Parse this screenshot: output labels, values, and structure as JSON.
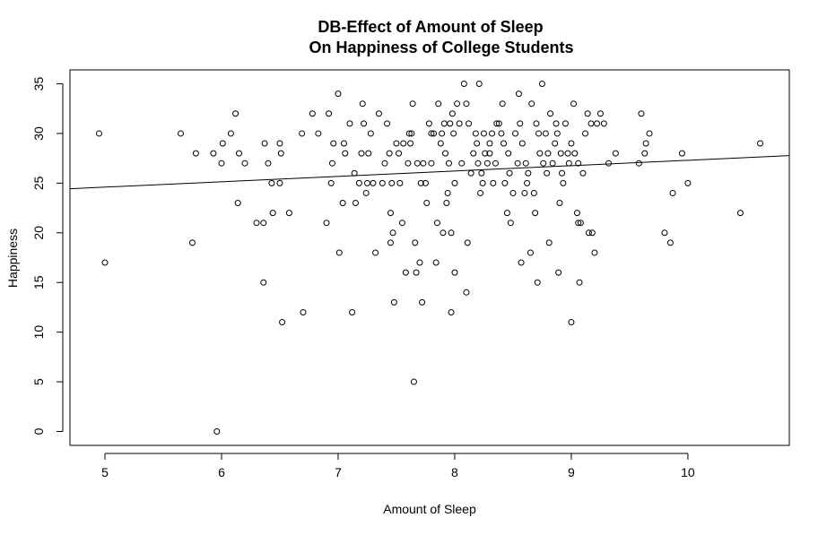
{
  "chart_data": {
    "type": "scatter",
    "title": [
      "DB-Effect of Amount of Sleep",
      "On Happiness of College Students"
    ],
    "xlabel": "Amount of Sleep",
    "ylabel": "Happiness",
    "xlim": [
      4.7,
      10.87
    ],
    "ylim": [
      -1.4,
      36.4
    ],
    "xticks": [
      5,
      6,
      7,
      8,
      9,
      10
    ],
    "yticks": [
      0,
      5,
      10,
      15,
      20,
      25,
      30,
      35
    ],
    "regression_line": {
      "intercept": 21.9,
      "slope": 0.54
    },
    "points": [
      [
        4.95,
        30
      ],
      [
        5.0,
        17
      ],
      [
        5.65,
        30
      ],
      [
        5.75,
        19
      ],
      [
        5.78,
        28
      ],
      [
        5.93,
        28
      ],
      [
        5.96,
        0
      ],
      [
        6.0,
        27
      ],
      [
        6.01,
        29
      ],
      [
        6.08,
        30
      ],
      [
        6.12,
        32
      ],
      [
        6.14,
        23
      ],
      [
        6.15,
        28
      ],
      [
        6.2,
        27
      ],
      [
        6.3,
        21
      ],
      [
        6.36,
        15
      ],
      [
        6.36,
        21
      ],
      [
        6.37,
        29
      ],
      [
        6.4,
        27
      ],
      [
        6.43,
        25
      ],
      [
        6.44,
        22
      ],
      [
        6.5,
        25
      ],
      [
        6.5,
        29
      ],
      [
        6.51,
        28
      ],
      [
        6.52,
        11
      ],
      [
        6.58,
        22
      ],
      [
        6.69,
        30
      ],
      [
        6.7,
        12
      ],
      [
        6.78,
        32
      ],
      [
        6.83,
        30
      ],
      [
        6.9,
        21
      ],
      [
        6.92,
        32
      ],
      [
        6.94,
        25
      ],
      [
        6.95,
        27
      ],
      [
        6.96,
        29
      ],
      [
        7.0,
        34
      ],
      [
        7.01,
        18
      ],
      [
        7.04,
        23
      ],
      [
        7.05,
        29
      ],
      [
        7.06,
        28
      ],
      [
        7.1,
        31
      ],
      [
        7.12,
        12
      ],
      [
        7.14,
        26
      ],
      [
        7.15,
        23
      ],
      [
        7.18,
        25
      ],
      [
        7.2,
        28
      ],
      [
        7.21,
        33
      ],
      [
        7.22,
        31
      ],
      [
        7.24,
        24
      ],
      [
        7.25,
        25
      ],
      [
        7.26,
        28
      ],
      [
        7.28,
        30
      ],
      [
        7.3,
        25
      ],
      [
        7.32,
        18
      ],
      [
        7.35,
        32
      ],
      [
        7.38,
        25
      ],
      [
        7.4,
        27
      ],
      [
        7.42,
        31
      ],
      [
        7.44,
        28
      ],
      [
        7.45,
        22
      ],
      [
        7.45,
        19
      ],
      [
        7.46,
        25
      ],
      [
        7.47,
        20
      ],
      [
        7.48,
        13
      ],
      [
        7.5,
        29
      ],
      [
        7.52,
        28
      ],
      [
        7.53,
        25
      ],
      [
        7.55,
        21
      ],
      [
        7.56,
        29
      ],
      [
        7.58,
        16
      ],
      [
        7.6,
        27
      ],
      [
        7.61,
        30
      ],
      [
        7.62,
        29
      ],
      [
        7.63,
        30
      ],
      [
        7.64,
        33
      ],
      [
        7.65,
        5
      ],
      [
        7.66,
        19
      ],
      [
        7.67,
        16
      ],
      [
        7.68,
        27
      ],
      [
        7.7,
        17
      ],
      [
        7.71,
        25
      ],
      [
        7.72,
        13
      ],
      [
        7.73,
        27
      ],
      [
        7.75,
        25
      ],
      [
        7.76,
        23
      ],
      [
        7.78,
        31
      ],
      [
        7.8,
        27
      ],
      [
        7.8,
        30
      ],
      [
        7.82,
        30
      ],
      [
        7.84,
        17
      ],
      [
        7.85,
        21
      ],
      [
        7.86,
        33
      ],
      [
        7.88,
        29
      ],
      [
        7.89,
        30
      ],
      [
        7.9,
        20
      ],
      [
        7.91,
        31
      ],
      [
        7.92,
        28
      ],
      [
        7.93,
        23
      ],
      [
        7.94,
        24
      ],
      [
        7.95,
        27
      ],
      [
        7.96,
        31
      ],
      [
        7.97,
        20
      ],
      [
        7.97,
        12
      ],
      [
        7.98,
        32
      ],
      [
        7.99,
        30
      ],
      [
        8.0,
        25
      ],
      [
        8.0,
        16
      ],
      [
        8.02,
        33
      ],
      [
        8.04,
        31
      ],
      [
        8.06,
        27
      ],
      [
        8.08,
        35
      ],
      [
        8.1,
        33
      ],
      [
        8.1,
        14
      ],
      [
        8.11,
        19
      ],
      [
        8.12,
        31
      ],
      [
        8.14,
        26
      ],
      [
        8.16,
        28
      ],
      [
        8.18,
        30
      ],
      [
        8.19,
        29
      ],
      [
        8.2,
        27
      ],
      [
        8.21,
        35
      ],
      [
        8.22,
        24
      ],
      [
        8.23,
        26
      ],
      [
        8.24,
        25
      ],
      [
        8.25,
        30
      ],
      [
        8.26,
        28
      ],
      [
        8.28,
        27
      ],
      [
        8.3,
        28
      ],
      [
        8.3,
        29
      ],
      [
        8.32,
        30
      ],
      [
        8.33,
        25
      ],
      [
        8.35,
        27
      ],
      [
        8.36,
        31
      ],
      [
        8.38,
        31
      ],
      [
        8.4,
        30
      ],
      [
        8.41,
        33
      ],
      [
        8.42,
        29
      ],
      [
        8.43,
        25
      ],
      [
        8.45,
        22
      ],
      [
        8.46,
        28
      ],
      [
        8.47,
        26
      ],
      [
        8.48,
        21
      ],
      [
        8.5,
        24
      ],
      [
        8.52,
        30
      ],
      [
        8.54,
        27
      ],
      [
        8.55,
        34
      ],
      [
        8.56,
        31
      ],
      [
        8.57,
        17
      ],
      [
        8.58,
        29
      ],
      [
        8.6,
        24
      ],
      [
        8.61,
        27
      ],
      [
        8.62,
        25
      ],
      [
        8.63,
        26
      ],
      [
        8.65,
        18
      ],
      [
        8.66,
        33
      ],
      [
        8.68,
        24
      ],
      [
        8.69,
        22
      ],
      [
        8.7,
        31
      ],
      [
        8.71,
        15
      ],
      [
        8.72,
        30
      ],
      [
        8.73,
        28
      ],
      [
        8.75,
        35
      ],
      [
        8.76,
        27
      ],
      [
        8.78,
        30
      ],
      [
        8.79,
        26
      ],
      [
        8.8,
        28
      ],
      [
        8.81,
        19
      ],
      [
        8.82,
        32
      ],
      [
        8.84,
        27
      ],
      [
        8.86,
        29
      ],
      [
        8.87,
        31
      ],
      [
        8.88,
        30
      ],
      [
        8.89,
        16
      ],
      [
        8.9,
        23
      ],
      [
        8.91,
        28
      ],
      [
        8.92,
        26
      ],
      [
        8.93,
        25
      ],
      [
        8.95,
        31
      ],
      [
        8.97,
        28
      ],
      [
        8.98,
        27
      ],
      [
        9.0,
        11
      ],
      [
        9.0,
        29
      ],
      [
        9.02,
        33
      ],
      [
        9.03,
        28
      ],
      [
        9.05,
        22
      ],
      [
        9.06,
        27
      ],
      [
        9.06,
        21
      ],
      [
        9.07,
        15
      ],
      [
        9.08,
        21
      ],
      [
        9.1,
        26
      ],
      [
        9.12,
        30
      ],
      [
        9.14,
        32
      ],
      [
        9.15,
        20
      ],
      [
        9.17,
        31
      ],
      [
        9.18,
        20
      ],
      [
        9.2,
        18
      ],
      [
        9.22,
        31
      ],
      [
        9.25,
        32
      ],
      [
        9.28,
        31
      ],
      [
        9.32,
        27
      ],
      [
        9.38,
        28
      ],
      [
        9.58,
        27
      ],
      [
        9.6,
        32
      ],
      [
        9.63,
        28
      ],
      [
        9.64,
        29
      ],
      [
        9.67,
        30
      ],
      [
        9.8,
        20
      ],
      [
        9.85,
        19
      ],
      [
        9.87,
        24
      ],
      [
        9.95,
        28
      ],
      [
        10.0,
        25
      ],
      [
        10.45,
        22
      ],
      [
        10.62,
        29
      ]
    ]
  }
}
